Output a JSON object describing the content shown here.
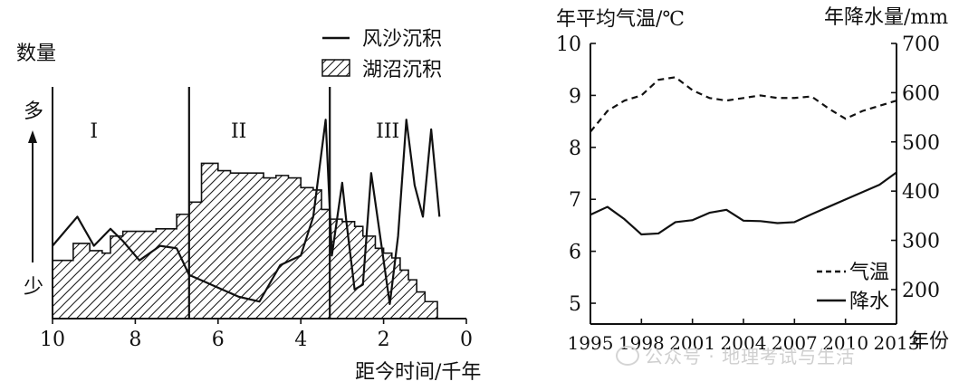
{
  "chart_data": [
    {
      "type": "area",
      "title": "",
      "ylabel": "数量",
      "y_top_label": "多",
      "y_bottom_label": "少",
      "xlabel": "距今时间/千年",
      "x_ticks": [
        "10",
        "8",
        "6",
        "4",
        "2",
        "0"
      ],
      "xlim": [
        10,
        0
      ],
      "ylim": [
        0,
        100
      ],
      "legend": [
        "风沙沉积",
        "湖沼沉积"
      ],
      "legend_position": "top-right",
      "periods": [
        {
          "label": "I",
          "x": 9.0
        },
        {
          "label": "II",
          "x": 5.5
        },
        {
          "label": "III",
          "x": 1.9
        }
      ],
      "period_boundaries": [
        6.7,
        3.3
      ],
      "series": [
        {
          "name": "风沙沉积",
          "x": [
            10,
            9.4,
            9.0,
            8.6,
            8.3,
            7.9,
            7.4,
            7.0,
            6.7,
            6.3,
            5.9,
            5.5,
            5.0,
            4.5,
            4.0,
            3.7,
            3.4,
            3.25,
            3.0,
            2.9,
            2.7,
            2.5,
            2.3,
            2.05,
            1.85,
            1.65,
            1.45,
            1.25,
            1.05,
            0.85,
            0.65
          ],
          "values": [
            30,
            42,
            30,
            37,
            32,
            24,
            30,
            29,
            18,
            15,
            12,
            9,
            7,
            22,
            26,
            42,
            82,
            26,
            56,
            40,
            12,
            14,
            60,
            30,
            6,
            34,
            82,
            55,
            42,
            78,
            42
          ]
        },
        {
          "name": "湖沼沉积",
          "x": [
            10,
            9.5,
            9.1,
            8.8,
            8.6,
            8.3,
            7.9,
            7.5,
            7.0,
            6.7,
            6.4,
            6.0,
            5.7,
            5.3,
            4.9,
            4.6,
            4.3,
            4.0,
            3.7,
            3.5,
            3.3,
            3.0,
            2.7,
            2.5,
            2.2,
            2.0,
            1.8,
            1.6,
            1.4,
            1.2,
            1.0,
            0.7
          ],
          "values": [
            24,
            31,
            28,
            27,
            34,
            36,
            36,
            37,
            43,
            48,
            64,
            61,
            60,
            60,
            58,
            59,
            58,
            54,
            53,
            45,
            41,
            40,
            38,
            34,
            29,
            27,
            25,
            20,
            16,
            11,
            7,
            0
          ]
        }
      ]
    },
    {
      "type": "line",
      "title": "",
      "y_left_label": "年平均气温/℃",
      "y_right_label": "年降水量/mm",
      "x_axis_label": "年份",
      "x_ticks": [
        "1995",
        "1998",
        "2001",
        "2004",
        "2007",
        "2010",
        "2013"
      ],
      "y_left_ticks": [
        "5",
        "6",
        "7",
        "8",
        "9",
        "10"
      ],
      "y_right_ticks": [
        "200",
        "300",
        "400",
        "500",
        "600",
        "700"
      ],
      "y_left_lim": [
        4.6,
        10
      ],
      "y_right_lim": [
        130,
        700
      ],
      "legend": [
        "气温",
        "降水"
      ],
      "legend_position": "bottom-right",
      "series": [
        {
          "name": "气温",
          "axis": "left",
          "style": "dashed",
          "x": [
            1995,
            1996,
            1997,
            1998,
            1999,
            2000,
            2001,
            2002,
            2003,
            2004,
            2005,
            2006,
            2007,
            2008,
            2009,
            2010,
            2011,
            2012,
            2013
          ],
          "values": [
            8.3,
            8.7,
            8.9,
            9.0,
            9.3,
            9.35,
            9.1,
            8.95,
            8.9,
            8.95,
            9.0,
            8.95,
            8.95,
            8.98,
            8.75,
            8.55,
            8.7,
            8.8,
            8.9
          ]
        },
        {
          "name": "降水",
          "axis": "right",
          "style": "solid",
          "x": [
            1995,
            1996,
            1997,
            1998,
            1999,
            2000,
            2001,
            2002,
            2003,
            2004,
            2005,
            2006,
            2007,
            2008,
            2009,
            2010,
            2011,
            2012,
            2013
          ],
          "values": [
            352,
            368,
            343,
            312,
            314,
            337,
            341,
            356,
            362,
            340,
            339,
            335,
            337,
            353,
            368,
            383,
            398,
            413,
            438
          ]
        }
      ]
    }
  ],
  "watermark": "公众号 · 地理考试与生活"
}
